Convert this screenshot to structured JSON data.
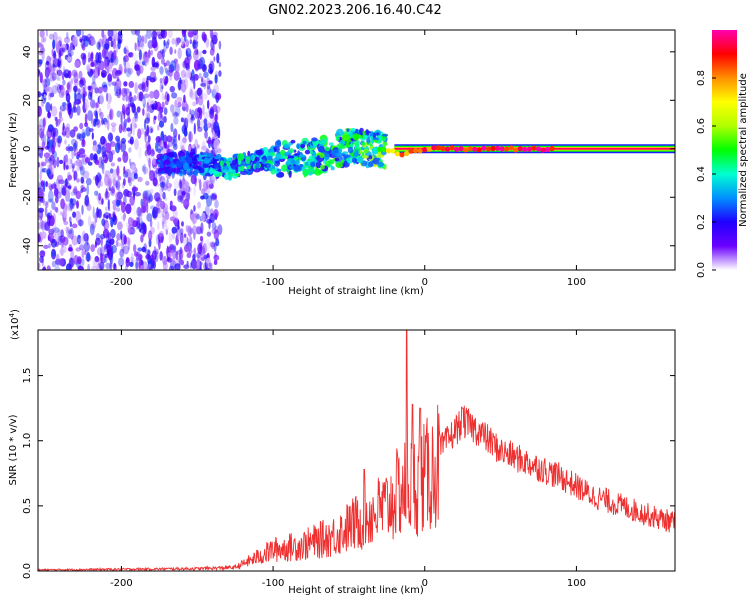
{
  "title": "GN02.2023.206.16.40.C42",
  "chart_data": [
    {
      "type": "heatmap",
      "xlabel": "Height of straight line (km)",
      "ylabel": "Frequency (Hz)",
      "xlim": [
        -255,
        165
      ],
      "ylim": [
        -50,
        49
      ],
      "xticks": [
        -200,
        -100,
        0,
        100
      ],
      "yticks": [
        -40,
        -20,
        0,
        20,
        40
      ],
      "colorbar": {
        "label": "Normalized spectral amplitude",
        "range": [
          0,
          1
        ],
        "ticks": [
          0.0,
          0.2,
          0.4,
          0.6,
          0.8
        ],
        "colors": [
          "#ffffff",
          "#6a00ff",
          "#1f00ff",
          "#0090ff",
          "#00ffd0",
          "#00ff00",
          "#b0ff00",
          "#ffff00",
          "#ff9000",
          "#ff0000",
          "#ff00b0"
        ]
      },
      "trace": [
        {
          "x": -170,
          "f": -6,
          "a": 0.25
        },
        {
          "x": -150,
          "f": -6,
          "a": 0.3
        },
        {
          "x": -130,
          "f": -8,
          "a": 0.4
        },
        {
          "x": -110,
          "f": -5,
          "a": 0.4
        },
        {
          "x": -90,
          "f": -4,
          "a": 0.4
        },
        {
          "x": -70,
          "f": -3,
          "a": 0.45
        },
        {
          "x": -50,
          "f": 1,
          "a": 0.45
        },
        {
          "x": -30,
          "f": 0,
          "a": 0.55
        },
        {
          "x": -15,
          "f": -2,
          "a": 0.8
        },
        {
          "x": 0,
          "f": 0,
          "a": 0.85
        },
        {
          "x": 20,
          "f": 0,
          "a": 0.9
        },
        {
          "x": 85,
          "f": 0,
          "a": 0.95
        },
        {
          "x": 165,
          "f": 0,
          "a": 0.95
        }
      ]
    },
    {
      "type": "line",
      "xlabel": "Height of straight line (km)",
      "ylabel": "SNR (10 * v/v)",
      "yscale_label": "(x10",
      "yscale_exp": "4",
      "xlim": [
        -255,
        165
      ],
      "ylim": [
        0,
        1.85
      ],
      "xticks": [
        -200,
        -100,
        0,
        100
      ],
      "yticks": [
        0.0,
        0.5,
        1.0,
        1.5
      ],
      "color": "#ee3030",
      "series": [
        {
          "envelope": [
            {
              "x": -255,
              "y": 0.01
            },
            {
              "x": -200,
              "y": 0.015
            },
            {
              "x": -150,
              "y": 0.02
            },
            {
              "x": -125,
              "y": 0.03
            },
            {
              "x": -110,
              "y": 0.12
            },
            {
              "x": -100,
              "y": 0.18
            },
            {
              "x": -80,
              "y": 0.22
            },
            {
              "x": -60,
              "y": 0.3
            },
            {
              "x": -40,
              "y": 0.45
            },
            {
              "x": -25,
              "y": 0.55
            },
            {
              "x": -15,
              "y": 0.7
            },
            {
              "x": -5,
              "y": 0.75
            },
            {
              "x": 5,
              "y": 0.85
            },
            {
              "x": 15,
              "y": 1.0
            },
            {
              "x": 25,
              "y": 1.15
            },
            {
              "x": 35,
              "y": 1.08
            },
            {
              "x": 50,
              "y": 0.92
            },
            {
              "x": 70,
              "y": 0.82
            },
            {
              "x": 90,
              "y": 0.72
            },
            {
              "x": 110,
              "y": 0.58
            },
            {
              "x": 130,
              "y": 0.5
            },
            {
              "x": 150,
              "y": 0.42
            },
            {
              "x": 165,
              "y": 0.37
            }
          ],
          "peaks": [
            {
              "x": -12,
              "y": 1.85
            },
            {
              "x": -8,
              "y": 1.28
            },
            {
              "x": -40,
              "y": 0.78
            },
            {
              "x": -3,
              "y": 1.25
            },
            {
              "x": 25,
              "y": 1.25
            }
          ]
        }
      ]
    }
  ]
}
